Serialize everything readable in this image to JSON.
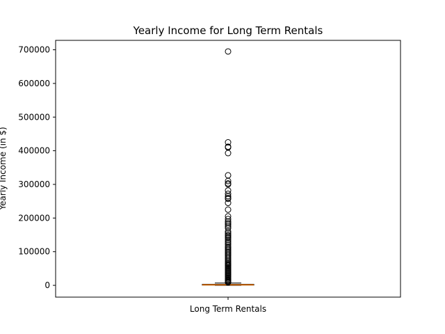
{
  "chart_data": {
    "type": "box",
    "title": "Yearly Income for Long Term Rentals",
    "xlabel": "",
    "ylabel": "Yearly Income (in $)",
    "categories": [
      "Long Term Rentals"
    ],
    "ylim": [
      -35000,
      728000
    ],
    "yticks": [
      0,
      100000,
      200000,
      300000,
      400000,
      500000,
      600000,
      700000
    ],
    "ytick_labels": [
      "0",
      "100000",
      "200000",
      "300000",
      "400000",
      "500000",
      "600000",
      "700000"
    ],
    "grid": false,
    "box": {
      "min": 0,
      "q1": 600,
      "median": 1500,
      "q3": 3200,
      "whisker_high": 7000,
      "median_color": "#ff7f0e"
    },
    "outliers": [
      695000,
      425000,
      412000,
      410000,
      393000,
      327000,
      310000,
      303000,
      300000,
      282000,
      272000,
      265000,
      260000,
      257000,
      245000,
      225000,
      205000,
      197000,
      190000,
      185000,
      180000,
      175000,
      170000,
      160000,
      155000,
      150000,
      147000,
      143000,
      140000,
      135000,
      130000,
      125000,
      120000,
      115000,
      112000,
      108000,
      104000,
      100000,
      96000,
      92000,
      88000,
      84000,
      80000,
      76000,
      72000,
      68000,
      65000,
      62000,
      59000,
      56000,
      53000,
      50000,
      47000,
      44000,
      41000,
      38000,
      35000,
      32000,
      29000,
      26000,
      23000,
      20000,
      17000,
      14500,
      12000,
      10000,
      8500
    ]
  }
}
